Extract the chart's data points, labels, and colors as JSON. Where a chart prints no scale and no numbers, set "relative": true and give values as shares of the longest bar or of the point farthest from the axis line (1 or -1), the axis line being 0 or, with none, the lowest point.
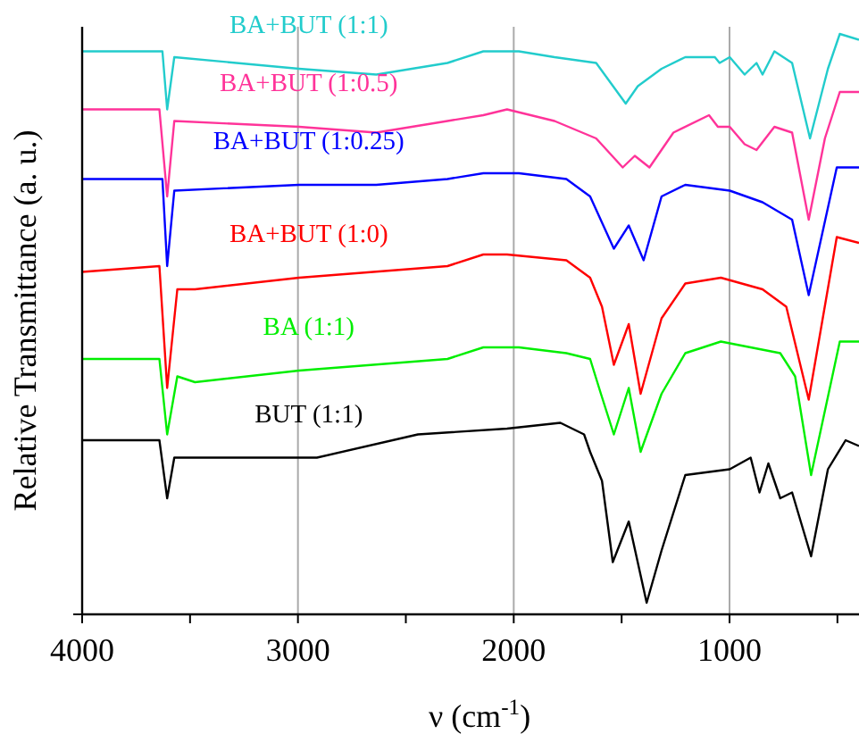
{
  "chart_data": {
    "type": "line",
    "relative": true,
    "xlabel": "ν (cm$^{-1}$)",
    "ylabel": "Relative Transmittance (a. u.)",
    "xlim": [
      4000,
      400
    ],
    "xticks": [
      4000,
      {
        "value": 3500,
        "label": null
      },
      3000,
      {
        "value": 2500,
        "label": null
      },
      2000,
      {
        "value": 1500,
        "label": null
      },
      1000,
      {
        "value": 500,
        "label": null
      }
    ],
    "grid": "x",
    "marker": "none",
    "line_style": "solid",
    "series": [
      {
        "name": "BA+BUT (1:1)",
        "color": "#22cccc",
        "x": [
          4000,
          3628,
          3606,
          3573,
          2995,
          2637,
          2307,
          2141,
          2031,
          1976,
          1811,
          1618,
          1481,
          1425,
          1315,
          1205,
          1068,
          1046,
          999,
          930,
          875,
          847,
          792,
          710,
          627,
          544,
          489,
          400
        ],
        "values": [
          0.97,
          0.97,
          0.87,
          0.96,
          0.94,
          0.93,
          0.95,
          0.97,
          0.97,
          0.97,
          0.96,
          0.95,
          0.88,
          0.91,
          0.94,
          0.96,
          0.96,
          0.95,
          0.96,
          0.93,
          0.95,
          0.93,
          0.97,
          0.95,
          0.82,
          0.94,
          1.0,
          0.99
        ]
      },
      {
        "name": "BA+BUT (1:0.5)",
        "color": "#ff3399",
        "x": [
          4000,
          3642,
          3606,
          3573,
          2995,
          2637,
          2307,
          2141,
          2031,
          1811,
          1618,
          1495,
          1439,
          1371,
          1260,
          1095,
          1054,
          999,
          930,
          875,
          792,
          710,
          633,
          558,
          489,
          400
        ],
        "values": [
          0.87,
          0.87,
          0.72,
          0.85,
          0.84,
          0.83,
          0.85,
          0.86,
          0.87,
          0.85,
          0.82,
          0.77,
          0.79,
          0.77,
          0.83,
          0.86,
          0.84,
          0.84,
          0.81,
          0.8,
          0.84,
          0.83,
          0.68,
          0.82,
          0.9,
          0.9
        ]
      },
      {
        "name": "BA+BUT (1:0.25)",
        "color": "#0000ff",
        "x": [
          4000,
          3628,
          3606,
          3573,
          2995,
          2637,
          2307,
          2141,
          1976,
          1756,
          1646,
          1536,
          1467,
          1398,
          1315,
          1205,
          999,
          847,
          710,
          633,
          503,
          400
        ],
        "values": [
          0.75,
          0.75,
          0.6,
          0.73,
          0.74,
          0.74,
          0.75,
          0.76,
          0.76,
          0.75,
          0.72,
          0.63,
          0.67,
          0.61,
          0.72,
          0.74,
          0.73,
          0.71,
          0.68,
          0.55,
          0.77,
          0.77
        ]
      },
      {
        "name": "BA+BUT (1:0)",
        "color": "#ff0000",
        "x": [
          4000,
          3642,
          3606,
          3559,
          3477,
          2995,
          2307,
          2141,
          2031,
          1756,
          1646,
          1591,
          1536,
          1467,
          1412,
          1315,
          1205,
          1040,
          847,
          737,
          633,
          503,
          400
        ],
        "values": [
          0.59,
          0.6,
          0.39,
          0.56,
          0.56,
          0.58,
          0.6,
          0.62,
          0.62,
          0.61,
          0.58,
          0.53,
          0.43,
          0.5,
          0.38,
          0.51,
          0.57,
          0.58,
          0.56,
          0.53,
          0.37,
          0.65,
          0.64
        ]
      },
      {
        "name": "BA (1:1)",
        "color": "#00ee00",
        "x": [
          4000,
          3642,
          3606,
          3559,
          3477,
          2995,
          2307,
          2141,
          1976,
          1756,
          1646,
          1596,
          1536,
          1467,
          1412,
          1315,
          1205,
          1040,
          765,
          696,
          622,
          489,
          400
        ],
        "values": [
          0.44,
          0.44,
          0.31,
          0.41,
          0.4,
          0.42,
          0.44,
          0.46,
          0.46,
          0.45,
          0.44,
          0.38,
          0.31,
          0.39,
          0.28,
          0.38,
          0.45,
          0.47,
          0.45,
          0.41,
          0.24,
          0.47,
          0.47
        ]
      },
      {
        "name": "BUT (1:1)",
        "color": "#000000",
        "x": [
          4000,
          3642,
          3606,
          3573,
          3477,
          2995,
          2912,
          2444,
          2031,
          1784,
          1674,
          1646,
          1591,
          1541,
          1467,
          1384,
          1315,
          1205,
          999,
          902,
          861,
          820,
          765,
          710,
          622,
          544,
          462,
          400
        ],
        "values": [
          0.3,
          0.3,
          0.2,
          0.27,
          0.27,
          0.27,
          0.27,
          0.31,
          0.32,
          0.33,
          0.31,
          0.28,
          0.23,
          0.09,
          0.16,
          0.02,
          0.11,
          0.24,
          0.25,
          0.27,
          0.21,
          0.26,
          0.2,
          0.21,
          0.1,
          0.25,
          0.3,
          0.29
        ]
      }
    ]
  }
}
